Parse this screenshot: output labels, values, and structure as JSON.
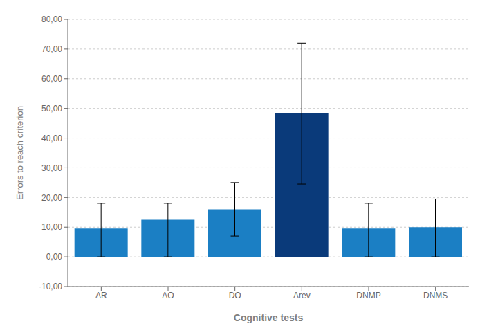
{
  "chart_data": {
    "type": "bar",
    "xlabel": "Cognitive tests",
    "ylabel": "Errors to reach criterion",
    "categories": [
      "AR",
      "AO",
      "DO",
      "Arev",
      "DNMP",
      "DNMS"
    ],
    "values": [
      9.5,
      12.5,
      16.0,
      48.5,
      9.5,
      10.0
    ],
    "errors_upper": [
      8.5,
      5.5,
      9.0,
      23.5,
      8.5,
      9.5
    ],
    "errors_lower": [
      9.5,
      12.5,
      9.0,
      24.0,
      9.5,
      10.0
    ],
    "colors": [
      "#1B7FC4",
      "#1B7FC4",
      "#1B7FC4",
      "#0A3A7A",
      "#1B7FC4",
      "#1B7FC4"
    ],
    "ylim": [
      -10,
      80
    ],
    "yticks": [
      {
        "value": -10,
        "label": "-10,00"
      },
      {
        "value": 0,
        "label": "0,00"
      },
      {
        "value": 10,
        "label": "10,00"
      },
      {
        "value": 20,
        "label": "20,00"
      },
      {
        "value": 30,
        "label": "30,00"
      },
      {
        "value": 40,
        "label": "40,00"
      },
      {
        "value": 50,
        "label": "50,00"
      },
      {
        "value": 60,
        "label": "60,00"
      },
      {
        "value": 70,
        "label": "70,00"
      },
      {
        "value": 80,
        "label": "80,00"
      }
    ],
    "grid": true
  }
}
